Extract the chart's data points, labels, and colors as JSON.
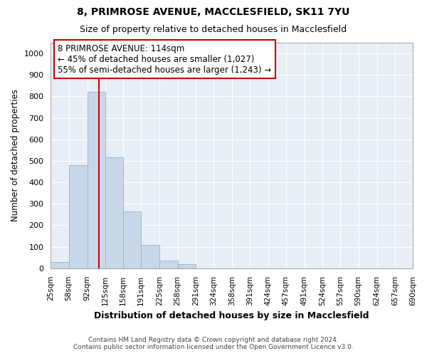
{
  "title": "8, PRIMROSE AVENUE, MACCLESFIELD, SK11 7YU",
  "subtitle": "Size of property relative to detached houses in Macclesfield",
  "xlabel": "Distribution of detached houses by size in Macclesfield",
  "ylabel": "Number of detached properties",
  "footer_line1": "Contains HM Land Registry data © Crown copyright and database right 2024.",
  "footer_line2": "Contains public sector information licensed under the Open Government Licence v3.0.",
  "bar_color": "#c8d8ea",
  "bar_edge_color": "#9ab8d0",
  "grid_color": "#ffffff",
  "bg_color": "#ffffff",
  "plot_bg_color": "#e8eef5",
  "vline_x": 114,
  "vline_color": "#cc0000",
  "annotation_text": "8 PRIMROSE AVENUE: 114sqm\n← 45% of detached houses are smaller (1,027)\n55% of semi-detached houses are larger (1,243) →",
  "annotation_box_color": "#ffffff",
  "annotation_border_color": "#cc0000",
  "bin_edges": [
    25,
    58,
    92,
    125,
    158,
    191,
    225,
    258,
    291,
    324,
    358,
    391,
    424,
    457,
    491,
    524,
    557,
    590,
    624,
    657,
    690
  ],
  "bar_heights": [
    28,
    480,
    820,
    515,
    263,
    110,
    37,
    20,
    0,
    0,
    0,
    0,
    0,
    0,
    0,
    0,
    0,
    0,
    0,
    0
  ],
  "ylim": [
    0,
    1050
  ],
  "yticks": [
    0,
    100,
    200,
    300,
    400,
    500,
    600,
    700,
    800,
    900,
    1000
  ],
  "figsize": [
    6.0,
    5.0
  ],
  "dpi": 100
}
